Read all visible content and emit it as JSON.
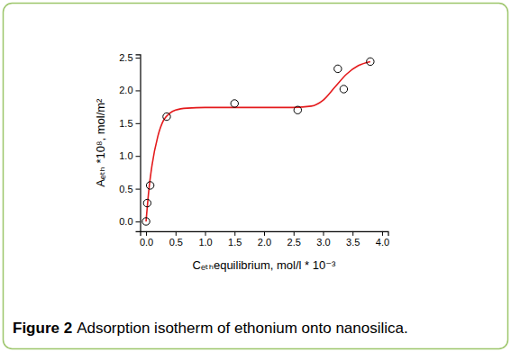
{
  "chart_data": {
    "type": "scatter",
    "caption_label": "Figure 2",
    "title": "Adsorption isotherm of ethonium onto nanosilica.",
    "x_label": "Cₑₜₕequilibrium, mol/l * 10⁻³",
    "y_label": "Aₑₜₕ *10⁸, mol/m²",
    "xlim": [
      -0.1,
      4.1
    ],
    "ylim": [
      -0.15,
      2.55
    ],
    "xticks": [
      {
        "value": 0,
        "label": "0.0"
      },
      0.5,
      {
        "value": 1,
        "label": "1.0"
      },
      1.5,
      {
        "value": 2,
        "label": "2.0"
      },
      2.5,
      {
        "value": 3,
        "label": "3.0"
      },
      3.5,
      {
        "value": 4,
        "label": "4.0"
      }
    ],
    "yticks": [
      {
        "value": 0,
        "label": "0.0"
      },
      0.5,
      {
        "value": 1,
        "label": "1.0"
      },
      1.5,
      {
        "value": 2,
        "label": "2.0"
      },
      2.5
    ],
    "grid": false,
    "series": [
      {
        "type": "scatter",
        "marker": "circle-open",
        "color": "#000000",
        "x": [
          0,
          0.02,
          0.07,
          0.35,
          1.5,
          2.57,
          3.25,
          3.35,
          3.8
        ],
        "values": [
          0,
          0.28,
          0.55,
          1.6,
          1.8,
          1.7,
          2.33,
          2.02,
          2.44
        ]
      },
      {
        "type": "line",
        "line_style": "solid",
        "color": "#e41a1c",
        "x": [
          0,
          0.05,
          0.1,
          0.2,
          0.3,
          0.4,
          0.5,
          0.7,
          1.0,
          1.5,
          2.0,
          2.5,
          2.8,
          3.0,
          3.2,
          3.4,
          3.6,
          3.8
        ],
        "values": [
          0,
          0.5,
          0.85,
          1.3,
          1.55,
          1.65,
          1.7,
          1.73,
          1.74,
          1.74,
          1.74,
          1.74,
          1.76,
          1.85,
          2.05,
          2.25,
          2.38,
          2.44
        ]
      }
    ]
  }
}
